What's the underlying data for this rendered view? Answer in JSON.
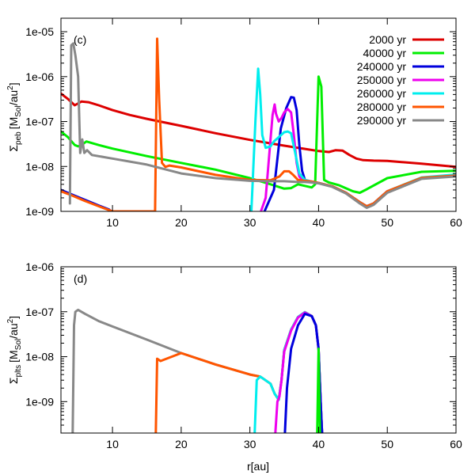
{
  "figure": {
    "xlabel": "r[au]"
  },
  "chart_data": [
    {
      "type": "line",
      "panel_label": "(c)",
      "ylabel_sigma": "Σ",
      "ylabel_sub": "peb",
      "ylabel_units": "[M",
      "ylabel_units_sub": "Sol",
      "ylabel_units_tail": "/au",
      "ylabel_units_exp": "2",
      "ylabel_units_close": "]",
      "yscale": "log",
      "xlim": [
        2.5,
        60
      ],
      "ylim": [
        1e-09,
        2e-05
      ],
      "x_ticks": [
        10,
        20,
        30,
        40,
        50,
        60
      ],
      "x_tick_labels": [
        "10",
        "20",
        "30",
        "40",
        "50",
        "60"
      ],
      "y_ticks": [
        1e-09,
        1e-08,
        1e-07,
        1e-06,
        1e-05
      ],
      "y_tick_labels": [
        "1e-09",
        "1e-08",
        "1e-07",
        "1e-06",
        "1e-05"
      ],
      "legend_position": "top-right",
      "series": [
        {
          "name": "2000 yr",
          "color": "#dd0000",
          "x": [
            2.5,
            3.5,
            4.5,
            5.5,
            6.5,
            8,
            10,
            12.5,
            15,
            20,
            25,
            30,
            35,
            40,
            41.5,
            42.5,
            43.5,
            44.5,
            45.5,
            46.5,
            48,
            50,
            55,
            60
          ],
          "y": [
            4.2e-07,
            3.2e-07,
            2.3e-07,
            2.8e-07,
            2.7e-07,
            2.3e-07,
            1.8e-07,
            1.4e-07,
            1.15e-07,
            8e-08,
            5.5e-08,
            3.9e-08,
            2.9e-08,
            2.2e-08,
            2.1e-08,
            2.3e-08,
            2.25e-08,
            1.8e-08,
            1.5e-08,
            1.38e-08,
            1.35e-08,
            1.33e-08,
            1.15e-08,
            9.8e-09
          ]
        },
        {
          "name": "40000 yr",
          "color": "#00ee00",
          "x": [
            2.5,
            3.5,
            4.5,
            5,
            5.5,
            6.2,
            8,
            10,
            15,
            20,
            25,
            30,
            33,
            35,
            36,
            37,
            38,
            39,
            39.5,
            40,
            40.4,
            40.8,
            41.5,
            43,
            45,
            46,
            47,
            50,
            55,
            60
          ],
          "y": [
            6e-08,
            4.5e-08,
            3e-08,
            2.8e-08,
            3e-08,
            3.6e-08,
            3e-08,
            2.5e-08,
            1.7e-08,
            1.2e-08,
            8.5e-09,
            5.5e-09,
            4e-09,
            3.2e-09,
            3.3e-09,
            4e-09,
            3.7e-09,
            3.4e-09,
            4e-09,
            1e-06,
            6e-07,
            5e-09,
            4.4e-09,
            3.8e-09,
            2.8e-09,
            2.6e-09,
            3.1e-09,
            5.5e-09,
            7.6e-09,
            8e-09
          ]
        },
        {
          "name": "240000 yr",
          "color": "#0000dd",
          "x": [
            2.5,
            4,
            6,
            8,
            9.5,
            10.2,
            32,
            33.5,
            34.5,
            35.3,
            36,
            36.4,
            36.8,
            37.2,
            37.6,
            38,
            39,
            40,
            42,
            44,
            46,
            47,
            48,
            50,
            55,
            60
          ],
          "y": [
            3e-09,
            2.4e-09,
            1.8e-09,
            1.35e-09,
            1.1e-09,
            9e-10,
            9e-10,
            3e-09,
            7e-08,
            2e-07,
            3.5e-07,
            3.4e-07,
            1.8e-07,
            3e-08,
            8e-09,
            5e-09,
            4.6e-09,
            4.3e-09,
            3.6e-09,
            2.6e-09,
            1.6e-09,
            1.3e-09,
            1.5e-09,
            2.8e-09,
            5.5e-09,
            6.2e-09
          ]
        },
        {
          "name": "250000 yr",
          "color": "#ee00ee",
          "x": [
            31.5,
            32.3,
            33,
            33.3,
            33.6,
            33.8,
            34.2,
            34.6,
            35,
            35.5,
            36,
            36.4,
            36.8,
            37.2,
            37.6,
            38,
            39,
            40,
            42,
            44,
            46,
            47,
            48,
            50,
            55,
            60
          ],
          "y": [
            9e-10,
            2e-09,
            4e-08,
            1.4e-07,
            2.4e-07,
            1.5e-07,
            1e-07,
            1.2e-07,
            1.6e-07,
            1.9e-07,
            1.6e-07,
            5e-08,
            1.2e-08,
            6e-09,
            5e-09,
            4.8e-09,
            4.6e-09,
            4.3e-09,
            3.6e-09,
            2.6e-09,
            1.6e-09,
            1.3e-09,
            1.5e-09,
            2.8e-09,
            5.6e-09,
            6.4e-09
          ]
        },
        {
          "name": "260000 yr",
          "color": "#00eeee",
          "x": [
            30.2,
            30.8,
            31.2,
            31.5,
            31.8,
            32.3,
            33,
            33.5,
            34.2,
            35,
            35.5,
            36,
            36.6,
            37.2,
            38,
            39,
            40,
            42,
            44,
            46,
            47,
            48,
            50,
            55,
            60
          ],
          "y": [
            9e-10,
            1e-07,
            1.5e-06,
            4e-07,
            5e-08,
            2.6e-08,
            2.8e-08,
            3.6e-08,
            4.5e-08,
            5.8e-08,
            6e-08,
            5.5e-08,
            2e-08,
            7e-09,
            5e-09,
            4.6e-09,
            4.3e-09,
            3.6e-09,
            2.6e-09,
            1.6e-09,
            1.3e-09,
            1.5e-09,
            2.8e-09,
            5.7e-09,
            6.6e-09
          ]
        },
        {
          "name": "280000 yr",
          "color": "#ff5500",
          "x": [
            2.5,
            4,
            6,
            8,
            10,
            16.2,
            16.5,
            16.8,
            17.2,
            17.7,
            18.3,
            20,
            25,
            30,
            33,
            34.3,
            35,
            35.7,
            36.3,
            37,
            38,
            39,
            40,
            42,
            44,
            46,
            47,
            48,
            50,
            55,
            60
          ],
          "y": [
            2.8e-09,
            2.3e-09,
            1.7e-09,
            1.3e-09,
            1e-09,
            1e-09,
            7e-06,
            3e-07,
            1.2e-08,
            9.8e-09,
            1.05e-08,
            9.5e-09,
            6.5e-09,
            5e-09,
            4.9e-09,
            6e-09,
            7.8e-09,
            7.8e-09,
            6.5e-09,
            5e-09,
            4.8e-09,
            4.6e-09,
            4.3e-09,
            3.6e-09,
            2.6e-09,
            1.6e-09,
            1.3e-09,
            1.5e-09,
            2.8e-09,
            5.6e-09,
            6.3e-09
          ]
        },
        {
          "name": "290000 yr",
          "color": "#888888",
          "x": [
            3.8,
            4,
            4.3,
            4.6,
            5,
            5.3,
            5.6,
            5.9,
            6.3,
            7,
            10,
            15,
            20,
            25,
            30,
            33,
            35,
            36,
            37,
            38,
            39,
            40,
            42,
            44,
            46,
            47,
            48,
            50,
            55,
            60
          ],
          "y": [
            1.5e-09,
            5e-06,
            5.5e-06,
            3e-06,
            1e-06,
            2e-08,
            4e-08,
            2e-08,
            2.3e-08,
            1.8e-08,
            1.5e-08,
            1.1e-08,
            7e-09,
            5.5e-09,
            4.8e-09,
            4.7e-09,
            4.7e-09,
            4.6e-09,
            4.5e-09,
            4.5e-09,
            4.4e-09,
            4.2e-09,
            3.5e-09,
            2.5e-09,
            1.5e-09,
            1.2e-09,
            1.4e-09,
            2.6e-09,
            5.3e-09,
            6e-09
          ]
        }
      ]
    },
    {
      "type": "line",
      "panel_label": "(d)",
      "ylabel_sigma": "Σ",
      "ylabel_sub": "plts",
      "ylabel_units": "[M",
      "ylabel_units_sub": "Sol",
      "ylabel_units_tail": "/au",
      "ylabel_units_exp": "2",
      "ylabel_units_close": "]",
      "yscale": "log",
      "xlim": [
        2.5,
        60
      ],
      "ylim": [
        2e-10,
        1e-06
      ],
      "x_ticks": [
        10,
        20,
        30,
        40,
        50,
        60
      ],
      "x_tick_labels": [
        "10",
        "20",
        "30",
        "40",
        "50",
        "60"
      ],
      "y_ticks": [
        1e-09,
        1e-08,
        1e-07,
        1e-06
      ],
      "y_tick_labels": [
        "1e-09",
        "1e-08",
        "1e-07",
        "1e-06"
      ],
      "series": [
        {
          "name": "290000 yr",
          "color": "#888888",
          "x": [
            4.2,
            4.4,
            4.6,
            5,
            6,
            8,
            10,
            15,
            20,
            25,
            30,
            31.5,
            33,
            33.6,
            34.2,
            34.6,
            35,
            36,
            37,
            38,
            39,
            39.6,
            40,
            40.3,
            40.5
          ],
          "y": [
            2e-10,
            5e-08,
            1e-07,
            1.1e-07,
            9e-08,
            6.2e-08,
            4.7e-08,
            2.4e-08,
            1.2e-08,
            6.7e-09,
            4e-09,
            3.6e-09,
            2.5e-09,
            1.5e-09,
            1.1e-09,
            3e-09,
            1.4e-08,
            4e-08,
            7.6e-08,
            9.8e-08,
            8e-08,
            5e-08,
            1.5e-08,
            1e-09,
            2e-10
          ]
        },
        {
          "name": "280000 yr",
          "color": "#ff5500",
          "x": [
            16.3,
            16.5,
            17,
            20,
            25,
            30,
            31.5,
            33,
            33.6,
            34.2,
            34.6,
            35,
            36,
            37,
            38,
            39,
            39.6,
            40,
            40.3,
            40.5
          ],
          "y": [
            2e-10,
            9e-09,
            8e-09,
            1.2e-08,
            6.7e-09,
            4e-09,
            3.6e-09,
            2.5e-09,
            1.5e-09,
            1.1e-09,
            3e-09,
            1.4e-08,
            4e-08,
            7.6e-08,
            9.8e-08,
            8e-08,
            5e-08,
            1.5e-08,
            1e-09,
            2e-10
          ]
        },
        {
          "name": "260000 yr",
          "color": "#00eeee",
          "x": [
            30.7,
            31,
            31.5,
            33,
            33.6,
            34.2,
            34.6,
            35,
            36,
            37,
            38,
            39,
            39.6,
            40,
            40.3,
            40.5
          ],
          "y": [
            2e-10,
            3e-09,
            3.6e-09,
            2.5e-09,
            1.5e-09,
            1.1e-09,
            3e-09,
            1.4e-08,
            4e-08,
            7.6e-08,
            9.8e-08,
            8e-08,
            5e-08,
            1.5e-08,
            1e-09,
            2e-10
          ]
        },
        {
          "name": "250000 yr",
          "color": "#ee00ee",
          "x": [
            33.7,
            34,
            34.3,
            34.6,
            35,
            36,
            37,
            38,
            39,
            39.6,
            40,
            40.3,
            40.5
          ],
          "y": [
            2e-10,
            1e-09,
            1.3e-09,
            3e-09,
            1.3e-08,
            3.8e-08,
            7.4e-08,
            9.6e-08,
            8e-08,
            5e-08,
            1.5e-08,
            1e-09,
            2e-10
          ]
        },
        {
          "name": "240000 yr",
          "color": "#0000dd",
          "x": [
            35.1,
            35.4,
            36,
            37,
            38,
            39,
            39.6,
            40,
            40.3,
            40.5
          ],
          "y": [
            2e-10,
            2e-09,
            1.5e-08,
            5e-08,
            9e-08,
            8e-08,
            5e-08,
            1.5e-08,
            1e-09,
            2e-10
          ]
        },
        {
          "name": "40000 yr",
          "color": "#00ee00",
          "x": [
            39.8,
            40,
            40.2
          ],
          "y": [
            2e-10,
            1.5e-08,
            2e-10
          ]
        }
      ]
    }
  ]
}
